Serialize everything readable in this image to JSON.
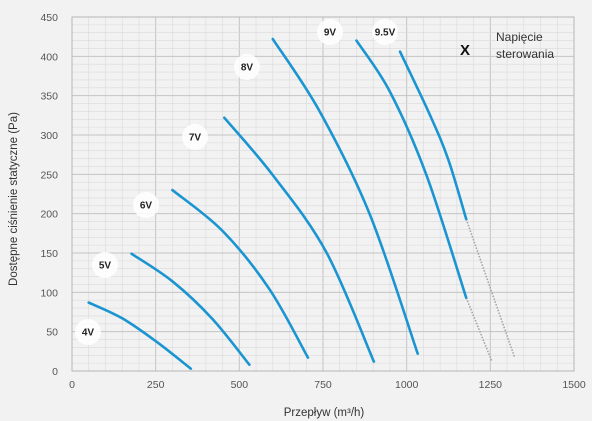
{
  "chart_data": {
    "type": "line",
    "xlabel": "Przepływ (m³/h)",
    "ylabel": "Dostępne ciśnienie statyczne (Pa)",
    "xlim": [
      0,
      1500
    ],
    "ylim": [
      0,
      450
    ],
    "xticks": [
      "0",
      "250",
      "500",
      "750",
      "1000",
      "1250",
      "1500"
    ],
    "yticks": [
      "0",
      "50",
      "100",
      "150",
      "200",
      "250",
      "300",
      "350",
      "400",
      "450"
    ],
    "grid": true,
    "line_color": "#1b95d1",
    "extension_color": "#a3a3a3",
    "legend": {
      "symbol": "X",
      "label_line1": "Napięcie",
      "label_line2": "sterowania",
      "placement": "top-right"
    },
    "series": [
      {
        "name": "4V",
        "x": [
          50,
          150,
          250,
          355
        ],
        "y": [
          87,
          67,
          38,
          3
        ]
      },
      {
        "name": "5V",
        "x": [
          178,
          300,
          420,
          530
        ],
        "y": [
          149,
          114,
          66,
          8
        ]
      },
      {
        "name": "6V",
        "x": [
          300,
          450,
          590,
          705
        ],
        "y": [
          230,
          178,
          104,
          17
        ]
      },
      {
        "name": "7V",
        "x": [
          455,
          600,
          760,
          902
        ],
        "y": [
          322,
          249,
          151,
          12
        ]
      },
      {
        "name": "8V",
        "x": [
          600,
          740,
          890,
          1033
        ],
        "y": [
          422,
          330,
          199,
          22
        ]
      },
      {
        "name": "9V",
        "x": [
          850,
          950,
          1060,
          1178
        ],
        "y": [
          420,
          355,
          248,
          93
        ]
      },
      {
        "name": "9.5V",
        "x": [
          980,
          1070,
          1125,
          1178
        ],
        "y": [
          406,
          325,
          268,
          193
        ]
      }
    ],
    "extensions": [
      {
        "x": [
          1178,
          1255
        ],
        "y": [
          93,
          12
        ]
      },
      {
        "x": [
          1178,
          1322
        ],
        "y": [
          193,
          18
        ]
      }
    ]
  }
}
